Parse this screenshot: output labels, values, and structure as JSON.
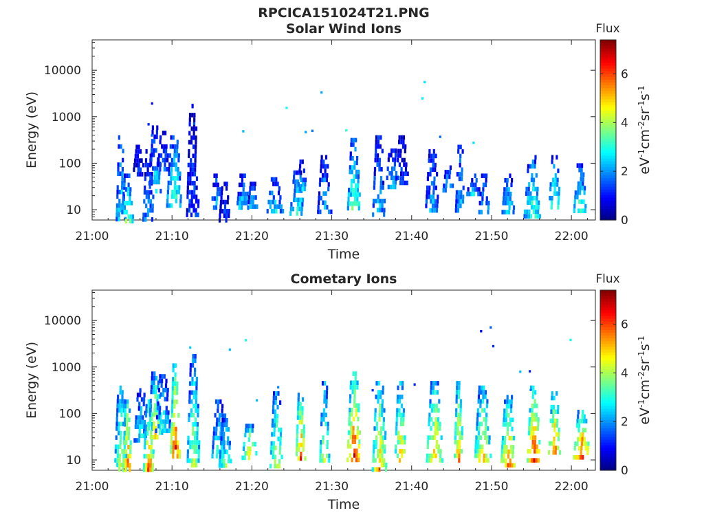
{
  "figure": {
    "title": "RPCICA151024T21.PNG"
  },
  "chart_data": [
    {
      "type": "heatmap",
      "title": "Solar Wind Ions",
      "xlabel": "Time",
      "ylabel": "Energy (eV)",
      "xticks": [
        "21:00",
        "21:10",
        "21:20",
        "21:30",
        "21:40",
        "21:50",
        "22:00"
      ],
      "xlim_minutes": [
        0,
        63
      ],
      "yticks": [
        "10",
        "100",
        "1000",
        "10000"
      ],
      "ylim": [
        6,
        45000
      ],
      "yscale": "log",
      "colorbar": {
        "label": "Flux",
        "units": "eV-1cm-2sr-1s-1",
        "ticks": [
          "0",
          "2",
          "4",
          "6"
        ],
        "range": [
          0,
          7.4
        ],
        "colormap": "jet"
      },
      "bursts": [
        {
          "t": 3.5,
          "emin": 6,
          "emax": 400,
          "flux": 3.0
        },
        {
          "t": 4.3,
          "emin": 6,
          "emax": 60,
          "flux": 4.0
        },
        {
          "t": 5.8,
          "emin": 60,
          "emax": 250,
          "flux": 1.2
        },
        {
          "t": 7.0,
          "emin": 6,
          "emax": 200,
          "flux": 2.2
        },
        {
          "t": 7.8,
          "emin": 25,
          "emax": 650,
          "flux": 2.8
        },
        {
          "t": 8.8,
          "emin": 80,
          "emax": 500,
          "flux": 2.0
        },
        {
          "t": 10.2,
          "emin": 12,
          "emax": 400,
          "flux": 3.5
        },
        {
          "t": 12.5,
          "emin": 8,
          "emax": 1900,
          "flux": 1.5
        },
        {
          "t": 15.5,
          "emin": 10,
          "emax": 60,
          "flux": 2.5
        },
        {
          "t": 16.5,
          "emin": 6,
          "emax": 40,
          "flux": 1.5
        },
        {
          "t": 18.8,
          "emin": 12,
          "emax": 60,
          "flux": 2.8
        },
        {
          "t": 20.0,
          "emin": 12,
          "emax": 40,
          "flux": 2.6
        },
        {
          "t": 22.8,
          "emin": 10,
          "emax": 50,
          "flux": 2.8
        },
        {
          "t": 25.6,
          "emin": 8,
          "emax": 70,
          "flux": 3.3
        },
        {
          "t": 26.2,
          "emin": 30,
          "emax": 120,
          "flux": 2.6
        },
        {
          "t": 29.0,
          "emin": 10,
          "emax": 150,
          "flux": 2.4
        },
        {
          "t": 32.7,
          "emin": 10,
          "emax": 350,
          "flux": 4.0
        },
        {
          "t": 35.8,
          "emin": 8,
          "emax": 400,
          "flux": 2.4
        },
        {
          "t": 37.5,
          "emin": 30,
          "emax": 260,
          "flux": 2.6
        },
        {
          "t": 38.7,
          "emin": 40,
          "emax": 400,
          "flux": 1.3
        },
        {
          "t": 42.5,
          "emin": 10,
          "emax": 200,
          "flux": 2.3
        },
        {
          "t": 44.5,
          "emin": 25,
          "emax": 90,
          "flux": 2.8
        },
        {
          "t": 46.0,
          "emin": 10,
          "emax": 250,
          "flux": 2.6
        },
        {
          "t": 47.7,
          "emin": 20,
          "emax": 60,
          "flux": 2.8
        },
        {
          "t": 49.0,
          "emin": 8,
          "emax": 60,
          "flux": 2.7
        },
        {
          "t": 52.0,
          "emin": 8,
          "emax": 60,
          "flux": 2.9
        },
        {
          "t": 55.0,
          "emin": 8,
          "emax": 150,
          "flux": 3.5
        },
        {
          "t": 57.8,
          "emin": 12,
          "emax": 150,
          "flux": 3.6
        },
        {
          "t": 61.0,
          "emin": 10,
          "emax": 100,
          "flux": 3.6
        }
      ]
    },
    {
      "type": "heatmap",
      "title": "Cometary Ions",
      "xlabel": "Time",
      "ylabel": "Energy (eV)",
      "xticks": [
        "21:00",
        "21:10",
        "21:20",
        "21:30",
        "21:40",
        "21:50",
        "22:00"
      ],
      "xlim_minutes": [
        0,
        63
      ],
      "yticks": [
        "10",
        "100",
        "1000",
        "10000"
      ],
      "ylim": [
        6,
        45000
      ],
      "yscale": "log",
      "colorbar": {
        "label": "Flux",
        "units": "eV-1cm-2sr-1s-1",
        "ticks": [
          "0",
          "2",
          "4",
          "6"
        ],
        "range": [
          0,
          7.4
        ],
        "colormap": "jet"
      },
      "bursts": [
        {
          "t": 3.5,
          "emin": 6,
          "emax": 400,
          "flux": 4.5
        },
        {
          "t": 4.3,
          "emin": 6,
          "emax": 200,
          "flux": 6.5
        },
        {
          "t": 6.0,
          "emin": 25,
          "emax": 350,
          "flux": 3.0
        },
        {
          "t": 7.0,
          "emin": 6,
          "emax": 200,
          "flux": 6.2
        },
        {
          "t": 7.8,
          "emin": 30,
          "emax": 800,
          "flux": 5.0
        },
        {
          "t": 8.8,
          "emin": 40,
          "emax": 700,
          "flux": 3.0
        },
        {
          "t": 10.3,
          "emin": 12,
          "emax": 1200,
          "flux": 6.8
        },
        {
          "t": 12.6,
          "emin": 8,
          "emax": 1900,
          "flux": 4.2
        },
        {
          "t": 15.8,
          "emin": 12,
          "emax": 200,
          "flux": 3.4
        },
        {
          "t": 16.6,
          "emin": 8,
          "emax": 100,
          "flux": 3.8
        },
        {
          "t": 19.6,
          "emin": 10,
          "emax": 60,
          "flux": 5.5
        },
        {
          "t": 23.0,
          "emin": 8,
          "emax": 300,
          "flux": 4.6
        },
        {
          "t": 26.0,
          "emin": 10,
          "emax": 350,
          "flux": 6.4
        },
        {
          "t": 29.0,
          "emin": 10,
          "emax": 500,
          "flux": 4.5
        },
        {
          "t": 32.7,
          "emin": 10,
          "emax": 800,
          "flux": 6.8
        },
        {
          "t": 35.9,
          "emin": 6,
          "emax": 500,
          "flux": 5.5
        },
        {
          "t": 38.5,
          "emin": 10,
          "emax": 500,
          "flux": 5.4
        },
        {
          "t": 42.8,
          "emin": 10,
          "emax": 500,
          "flux": 5.6
        },
        {
          "t": 45.8,
          "emin": 10,
          "emax": 500,
          "flux": 5.8
        },
        {
          "t": 48.8,
          "emin": 10,
          "emax": 400,
          "flux": 5.2
        },
        {
          "t": 52.0,
          "emin": 8,
          "emax": 250,
          "flux": 6.0
        },
        {
          "t": 55.2,
          "emin": 10,
          "emax": 400,
          "flux": 6.8
        },
        {
          "t": 57.8,
          "emin": 15,
          "emax": 300,
          "flux": 6.2
        },
        {
          "t": 61.2,
          "emin": 12,
          "emax": 120,
          "flux": 6.6
        }
      ]
    }
  ]
}
